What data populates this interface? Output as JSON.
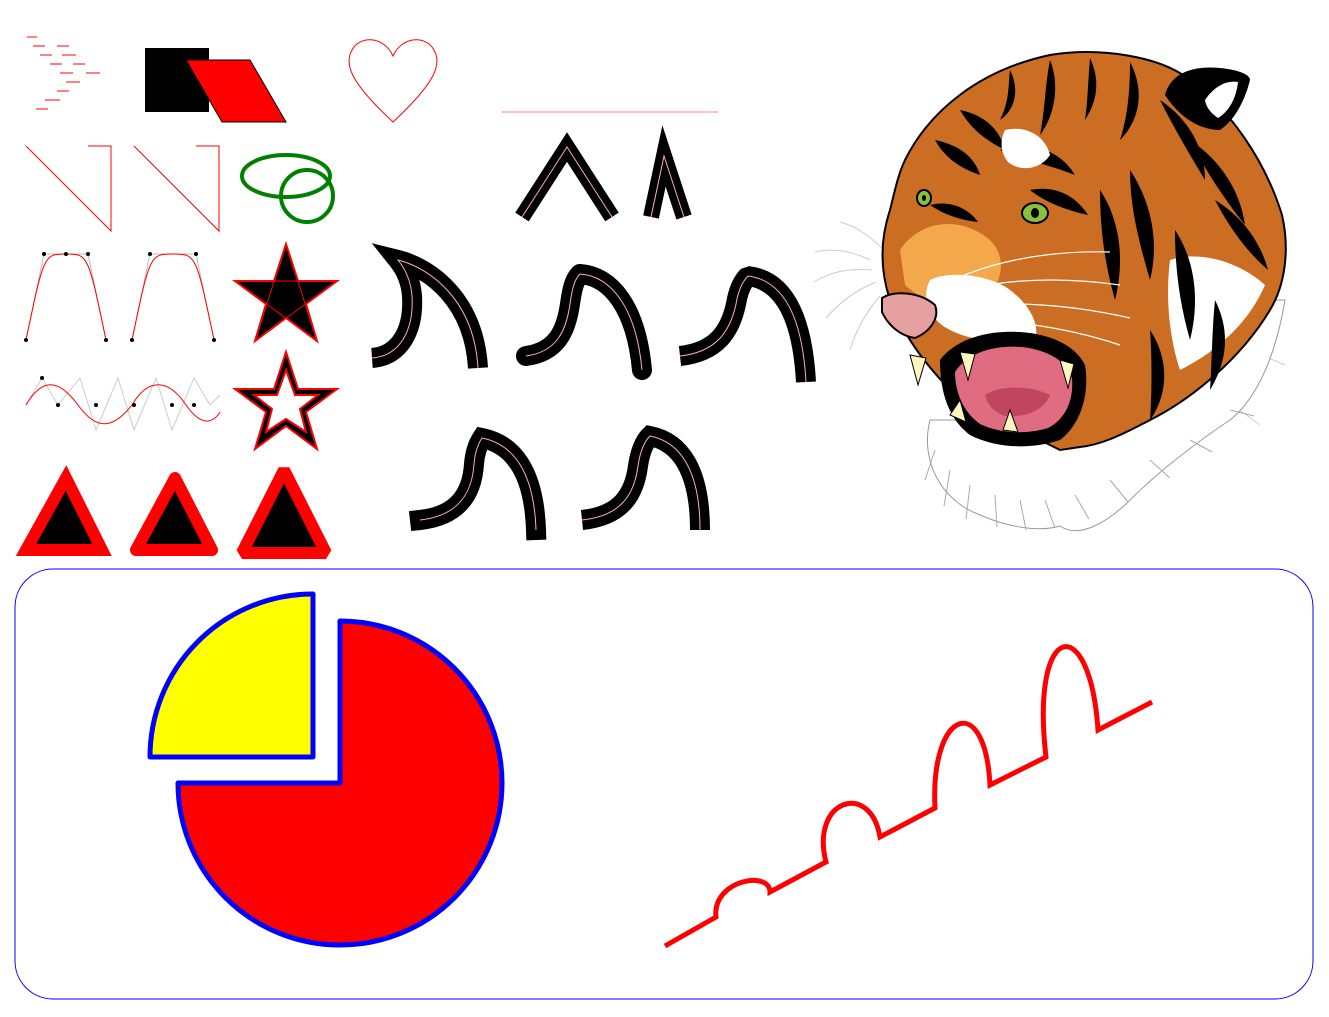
{
  "colors": {
    "background": "#ffffff",
    "red": "#ff0000",
    "black": "#000000",
    "green": "#008000",
    "blue": "#0000ff",
    "yellow": "#ffff00",
    "gray": "#bbbbbb",
    "tiger_orange": "#cc6d24",
    "tiger_light": "#f3a84b",
    "tiger_nose": "#e6a0a0",
    "tiger_mouth": "#e06c82",
    "tiger_eye": "#88c23c",
    "tooth": "#fff5c0"
  },
  "icons": [
    "heart-icon",
    "star-icon",
    "tiger-head-icon"
  ]
}
